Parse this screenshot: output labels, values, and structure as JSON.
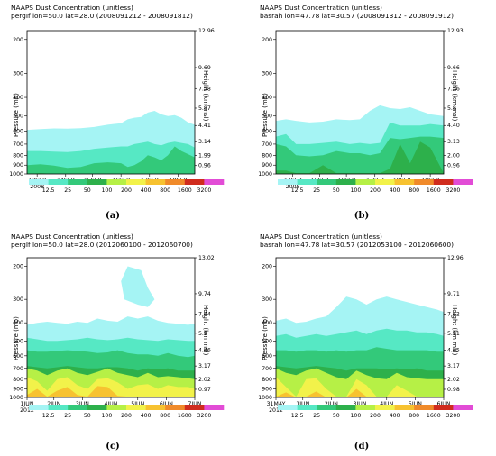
{
  "colors": {
    "c12_5": "#a5f4f4",
    "c25": "#56e8c4",
    "c50": "#33c97a",
    "c100": "#2db04b",
    "c200": "#b6f046",
    "c400": "#f2f24a",
    "c800": "#f7c230",
    "c1600": "#f08a2a",
    "c3200": "#d02c1e",
    "cmax": "#e24cd6"
  },
  "legend": {
    "labels": [
      "12.5",
      "25",
      "50",
      "100",
      "200",
      "400",
      "800",
      "1600",
      "3200"
    ]
  },
  "chart_data": [
    {
      "id": "a",
      "type": "area",
      "caption": "(a)",
      "title": "NAAPS Dust Concentration (unitless)",
      "subtitle": "pergIf lon=50.0 lat=28.0 (2008091212 - 2008091812)",
      "ylabel": "Pressure (mb)",
      "ylabel_right": "Height (km msl)",
      "ylim": [
        1000,
        180
      ],
      "y_scale": "log",
      "pressure_ticks": [
        "200",
        "300",
        "400",
        "500",
        "600",
        "700",
        "800",
        "900",
        "1000"
      ],
      "height_ticks": [
        "12.96",
        "9.69",
        "7.58",
        "5.87",
        "4.41",
        "3.14",
        "1.99",
        "0.96"
      ],
      "height_tick_pressures": [
        180,
        280,
        360,
        455,
        560,
        680,
        800,
        905
      ],
      "x_ticks": [
        "13SEP\n2008",
        "14SEP",
        "15SEP",
        "16SEP",
        "17SEP",
        "18SEP"
      ],
      "x_tick_pos": [
        0.06,
        0.23,
        0.39,
        0.56,
        0.73,
        0.9
      ],
      "x": [
        0,
        0.08,
        0.16,
        0.24,
        0.32,
        0.4,
        0.48,
        0.56,
        0.6,
        0.64,
        0.68,
        0.72,
        0.76,
        0.8,
        0.84,
        0.88,
        0.92,
        0.96,
        1.0
      ],
      "layers": [
        {
          "color": "c12_5",
          "top": [
            590,
            585,
            580,
            582,
            578,
            570,
            555,
            545,
            520,
            510,
            505,
            480,
            470,
            490,
            500,
            495,
            510,
            540,
            555
          ]
        },
        {
          "color": "c25",
          "top": [
            760,
            760,
            765,
            770,
            760,
            740,
            730,
            720,
            720,
            700,
            690,
            680,
            700,
            710,
            690,
            680,
            690,
            700,
            730
          ]
        },
        {
          "color": "c50",
          "top": [
            900,
            890,
            905,
            930,
            920,
            880,
            870,
            880,
            920,
            900,
            860,
            800,
            820,
            850,
            800,
            720,
            760,
            790,
            820
          ]
        },
        {
          "color": "c100",
          "top": [
            1000,
            990,
            1000,
            1000,
            1000,
            1000,
            1000,
            1000,
            1000,
            1000,
            1000,
            1000,
            1000,
            1000,
            1000,
            1000,
            1000,
            1000,
            1000
          ]
        }
      ]
    },
    {
      "id": "b",
      "type": "area",
      "caption": "(b)",
      "title": "NAAPS Dust Concentration (unitless)",
      "subtitle": "basrah lon=47.78 lat=30.57 (2008091312 - 2008091912)",
      "ylabel": "Pressure (mb)",
      "ylabel_right": "Height (km msl)",
      "ylim": [
        1000,
        180
      ],
      "y_scale": "log",
      "pressure_ticks": [
        "200",
        "300",
        "400",
        "500",
        "600",
        "700",
        "800",
        "900",
        "1000"
      ],
      "height_ticks": [
        "12.93",
        "9.66",
        "7.56",
        "5.8",
        "4.40",
        "3.13",
        "2.00",
        "0.96"
      ],
      "height_tick_pressures": [
        180,
        280,
        360,
        455,
        560,
        680,
        800,
        905
      ],
      "x_ticks": [
        "14SEP\n2008",
        "15SEP",
        "16SEP",
        "17SEP",
        "18SEP",
        "19SEP"
      ],
      "x_tick_pos": [
        0.1,
        0.26,
        0.42,
        0.59,
        0.75,
        0.92
      ],
      "x": [
        0,
        0.06,
        0.12,
        0.2,
        0.28,
        0.36,
        0.44,
        0.5,
        0.56,
        0.62,
        0.68,
        0.74,
        0.8,
        0.86,
        0.92,
        1.0
      ],
      "layers": [
        {
          "color": "c12_5",
          "top": [
            530,
            520,
            530,
            540,
            535,
            520,
            525,
            520,
            470,
            440,
            455,
            460,
            450,
            470,
            490,
            500
          ]
        },
        {
          "color": "c25",
          "top": [
            640,
            620,
            700,
            700,
            690,
            680,
            700,
            690,
            700,
            690,
            540,
            560,
            560,
            560,
            550,
            560
          ]
        },
        {
          "color": "c50",
          "top": [
            700,
            720,
            800,
            810,
            800,
            760,
            780,
            780,
            800,
            780,
            650,
            660,
            650,
            640,
            640,
            650
          ]
        },
        {
          "color": "c100",
          "top": [
            960,
            960,
            990,
            990,
            900,
            990,
            990,
            990,
            990,
            990,
            940,
            700,
            880,
            680,
            730,
            990
          ]
        }
      ]
    },
    {
      "id": "c",
      "type": "area",
      "caption": "(c)",
      "title": "NAAPS Dust Concentration (unitless)",
      "subtitle": "pergIf lon=50.0 lat=28.0 (2012060100 - 2012060700)",
      "ylabel": "Pressure (mb)",
      "ylabel_right": "Height (km msl)",
      "ylim": [
        1000,
        180
      ],
      "y_scale": "log",
      "pressure_ticks": [
        "200",
        "300",
        "400",
        "500",
        "600",
        "700",
        "800",
        "900",
        "1000"
      ],
      "height_ticks": [
        "13.02",
        "9.74",
        "7.64",
        "5.9",
        "4.46",
        "3.17",
        "2.02",
        "0.97"
      ],
      "height_tick_pressures": [
        180,
        280,
        360,
        455,
        560,
        680,
        800,
        905
      ],
      "x_ticks": [
        "1JUN\n2012",
        "2JUN",
        "3JUN",
        "4JUN",
        "5JUN",
        "6JUN",
        "7JUN"
      ],
      "x_tick_pos": [
        0.0,
        0.16,
        0.33,
        0.5,
        0.66,
        0.83,
        1.0
      ],
      "x": [
        0,
        0.06,
        0.12,
        0.18,
        0.24,
        0.3,
        0.36,
        0.42,
        0.48,
        0.54,
        0.6,
        0.66,
        0.72,
        0.78,
        0.84,
        0.9,
        0.96,
        1.0
      ],
      "layers": [
        {
          "color": "c12_5",
          "top": [
            410,
            400,
            395,
            400,
            405,
            395,
            400,
            380,
            390,
            395,
            370,
            380,
            370,
            390,
            400,
            405,
            410,
            405
          ]
        },
        {
          "color": "c25",
          "top": [
            480,
            490,
            500,
            500,
            495,
            490,
            480,
            490,
            495,
            490,
            480,
            490,
            495,
            500,
            490,
            495,
            500,
            500
          ]
        },
        {
          "color": "c50",
          "top": [
            560,
            570,
            570,
            565,
            560,
            565,
            570,
            580,
            575,
            560,
            580,
            590,
            590,
            600,
            580,
            600,
            610,
            600
          ]
        },
        {
          "color": "c100",
          "top": [
            680,
            690,
            700,
            690,
            680,
            690,
            700,
            700,
            690,
            690,
            700,
            720,
            700,
            710,
            700,
            720,
            720,
            720
          ]
        },
        {
          "color": "c200",
          "top": [
            700,
            720,
            760,
            720,
            700,
            740,
            760,
            730,
            700,
            740,
            760,
            780,
            740,
            780,
            770,
            780,
            790,
            800
          ]
        },
        {
          "color": "c400",
          "top": [
            780,
            820,
            920,
            800,
            780,
            860,
            900,
            800,
            790,
            830,
            900,
            860,
            850,
            900,
            860,
            880,
            880,
            900
          ]
        },
        {
          "color": "c800",
          "top": [
            970,
            900,
            990,
            920,
            880,
            970,
            990,
            870,
            880,
            980,
            990,
            990,
            990,
            990,
            990,
            990,
            990,
            990
          ]
        }
      ],
      "blob": {
        "color": "c12_5",
        "points": [
          [
            0.58,
            300
          ],
          [
            0.56,
            240
          ],
          [
            0.6,
            200
          ],
          [
            0.68,
            210
          ],
          [
            0.72,
            260
          ],
          [
            0.76,
            300
          ],
          [
            0.72,
            330
          ],
          [
            0.66,
            320
          ]
        ]
      }
    },
    {
      "id": "d",
      "type": "area",
      "caption": "(d)",
      "title": "NAAPS Dust Concentration (unitless)",
      "subtitle": "basrah lon=47.78 lat=30.57 (2012053100 - 2012060600)",
      "ylabel": "Pressure (mb)",
      "ylabel_right": "Height (km msl)",
      "ylim": [
        1000,
        180
      ],
      "y_scale": "log",
      "pressure_ticks": [
        "200",
        "300",
        "400",
        "500",
        "600",
        "700",
        "800",
        "900",
        "1000"
      ],
      "height_ticks": [
        "12.96",
        "9.71",
        "7.62",
        "5.91",
        "4.45",
        "3.17",
        "2.02",
        "0.98"
      ],
      "height_tick_pressures": [
        180,
        280,
        360,
        455,
        560,
        680,
        800,
        905
      ],
      "x_ticks": [
        "31MAY\n2012",
        "1JUN",
        "2JUN",
        "3JUN",
        "4JUN",
        "5JUN",
        "6JUN"
      ],
      "x_tick_pos": [
        0.0,
        0.16,
        0.33,
        0.5,
        0.66,
        0.83,
        1.0
      ],
      "x": [
        0,
        0.06,
        0.12,
        0.18,
        0.24,
        0.3,
        0.36,
        0.42,
        0.48,
        0.54,
        0.6,
        0.66,
        0.72,
        0.78,
        0.84,
        0.9,
        0.96,
        1.0
      ],
      "layers": [
        {
          "color": "c12_5",
          "top": [
            390,
            380,
            400,
            395,
            380,
            370,
            330,
            290,
            300,
            320,
            300,
            290,
            300,
            310,
            320,
            330,
            340,
            350
          ]
        },
        {
          "color": "c25",
          "top": [
            470,
            460,
            480,
            470,
            460,
            470,
            460,
            450,
            440,
            460,
            440,
            430,
            440,
            440,
            450,
            450,
            460,
            470
          ]
        },
        {
          "color": "c50",
          "top": [
            560,
            560,
            570,
            560,
            560,
            570,
            560,
            570,
            560,
            560,
            540,
            550,
            560,
            560,
            560,
            560,
            570,
            570
          ]
        },
        {
          "color": "c100",
          "top": [
            680,
            690,
            700,
            690,
            680,
            690,
            700,
            720,
            700,
            700,
            700,
            710,
            700,
            710,
            700,
            720,
            720,
            720
          ]
        },
        {
          "color": "c200",
          "top": [
            700,
            740,
            760,
            720,
            700,
            740,
            780,
            800,
            720,
            760,
            790,
            800,
            740,
            780,
            790,
            800,
            800,
            800
          ]
        },
        {
          "color": "c400",
          "top": [
            780,
            880,
            990,
            800,
            790,
            900,
            990,
            990,
            800,
            860,
            990,
            990,
            860,
            920,
            990,
            990,
            990,
            990
          ]
        },
        {
          "color": "c800",
          "top": [
            990,
            940,
            1000,
            990,
            930,
            1000,
            1000,
            1000,
            900,
            990,
            1000,
            1000,
            1000,
            1000,
            1000,
            1000,
            1000,
            1000
          ]
        }
      ]
    }
  ]
}
